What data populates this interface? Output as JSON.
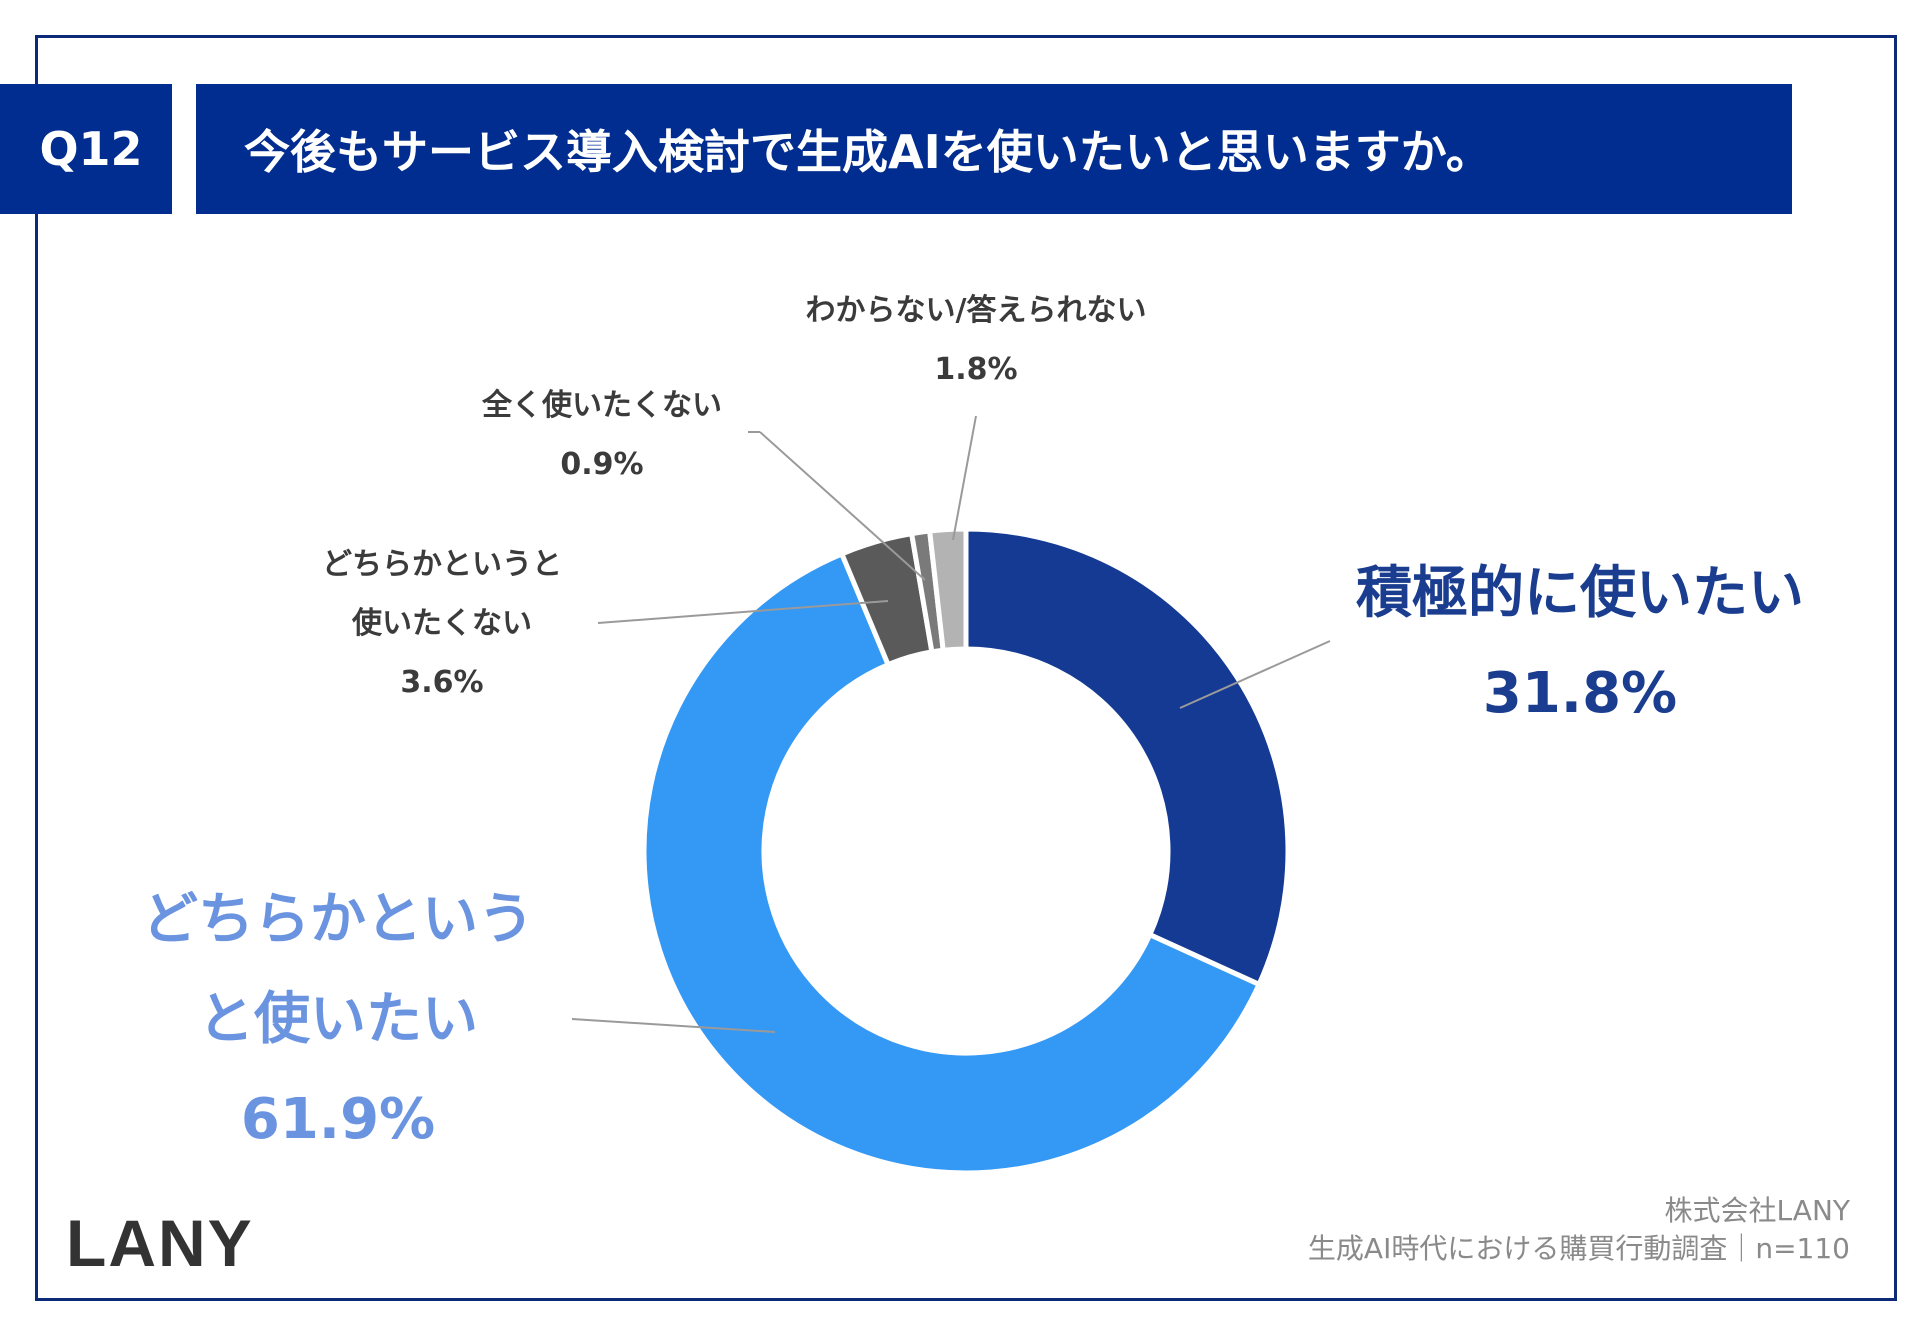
{
  "header": {
    "question_id": "Q12",
    "question": "今後もサービス導入検討で生成AIを使いたいと思いますか。"
  },
  "chart_data": {
    "type": "pie",
    "subtype": "donut",
    "start": "12 o'clock, clockwise",
    "slices": [
      {
        "label": "積極的に使いたい",
        "value": 31.8,
        "value_label": "31.8%",
        "color": "#143a94"
      },
      {
        "label": "どちらかというと使いたい",
        "value": 61.9,
        "value_label": "61.9%",
        "color": "#3498f5"
      },
      {
        "label": "どちらかというと使いたくない",
        "value": 3.6,
        "value_label": "3.6%",
        "color": "#5a5a5a"
      },
      {
        "label": "全く使いたくない",
        "value": 0.9,
        "value_label": "0.9%",
        "color": "#7a7a7a"
      },
      {
        "label": "わからない/答えられない",
        "value": 1.8,
        "value_label": "1.8%",
        "color": "#b3b3b3"
      }
    ],
    "label_lines": {
      "slice_0": [
        "積極的に使いたい"
      ],
      "slice_1": [
        "どちらかという",
        "と使いたい"
      ],
      "slice_2": [
        "どちらかというと",
        "使いたくない"
      ],
      "slice_3": [
        "全く使いたくない"
      ],
      "slice_4": [
        "わからない/答えられない"
      ]
    }
  },
  "footer": {
    "logo": "LANY",
    "company": "株式会社LANY",
    "survey": "生成AI時代における購買行動調査｜n=110"
  }
}
